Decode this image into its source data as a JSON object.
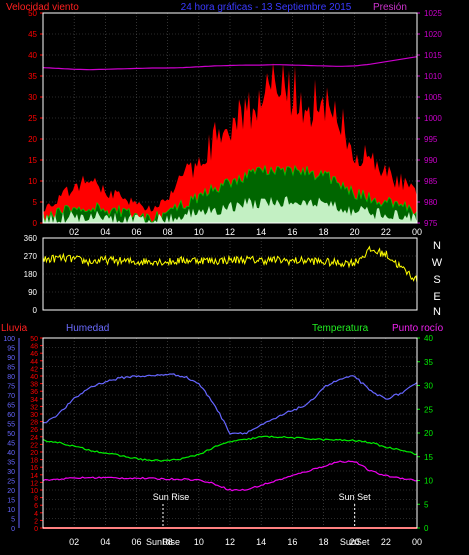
{
  "header": {
    "wind_title": "Velocidad viento",
    "center_title": "24 hora gráficas - 13 Septiembre 2015",
    "pressure_title": "Presión"
  },
  "bottom_headers": {
    "rain": "Lluvia",
    "humidity": "Humedad",
    "temperature": "Temperatura",
    "dewpoint": "Punto rocío"
  },
  "annotations": {
    "sun_rise": "Sun Rise",
    "sun_set": "Sun Set",
    "sunrise_axis_label": "SunRise",
    "sunset_axis_label": "SunSet"
  },
  "direction_letters": [
    "N",
    "W",
    "S",
    "E",
    "N"
  ],
  "x_tick_labels": [
    "02",
    "04",
    "06",
    "08",
    "10",
    "12",
    "14",
    "16",
    "18",
    "20",
    "22",
    "00"
  ],
  "colors": {
    "wind_gust": "#ff0000",
    "wind_avg": "#00c800",
    "wind_min": "#d8ffd8",
    "pressure": "#cc00cc",
    "direction": "#ffff00",
    "humidity": "#6666ff",
    "temperature": "#00ee00",
    "dewpoint": "#ee00ee",
    "rain": "#ff0000",
    "frame": "#ffffff",
    "grid": "#555555"
  },
  "chart_data": [
    {
      "type": "area",
      "name": "wind-pressure",
      "y_left": {
        "ticks": [
          0,
          5,
          10,
          15,
          20,
          25,
          30,
          35,
          40,
          45,
          50
        ],
        "range": [
          0,
          50
        ]
      },
      "y_right": {
        "ticks": [
          975,
          980,
          985,
          990,
          995,
          1000,
          1005,
          1010,
          1015,
          1020,
          1025
        ],
        "range": [
          975,
          1025
        ]
      },
      "x_hours": [
        0,
        1,
        2,
        3,
        4,
        5,
        6,
        7,
        8,
        9,
        10,
        11,
        12,
        13,
        14,
        15,
        16,
        17,
        18,
        19,
        20,
        21,
        22,
        23,
        24
      ],
      "series": [
        {
          "name": "Velocidad viento",
          "values": [
            3,
            5,
            8,
            9,
            7,
            6,
            4,
            3,
            5,
            10,
            14,
            18,
            22,
            25,
            27,
            29,
            28,
            27,
            25,
            22,
            16,
            13,
            11,
            9,
            6
          ]
        },
        {
          "name": "Presión",
          "values": [
            1012,
            1011.8,
            1011.6,
            1011.5,
            1011.6,
            1011.7,
            1011.8,
            1011.9,
            1011.9,
            1012,
            1012.2,
            1012.4,
            1012.5,
            1012.6,
            1012.6,
            1012.7,
            1012.6,
            1012.5,
            1012.4,
            1012.3,
            1012.4,
            1012.8,
            1013.4,
            1014,
            1014.6
          ]
        }
      ]
    },
    {
      "type": "scatter",
      "name": "wind-direction",
      "y_ticks": [
        0,
        90,
        180,
        270,
        360
      ],
      "y_range": [
        0,
        360
      ],
      "x_hours": [
        0,
        1,
        2,
        3,
        4,
        5,
        6,
        7,
        8,
        9,
        10,
        11,
        12,
        13,
        14,
        15,
        16,
        17,
        18,
        19,
        20,
        21,
        22,
        23,
        24
      ],
      "values": [
        250,
        260,
        255,
        240,
        250,
        245,
        240,
        245,
        240,
        248,
        250,
        245,
        250,
        252,
        248,
        250,
        245,
        248,
        240,
        235,
        238,
        300,
        280,
        210,
        150
      ]
    },
    {
      "type": "line",
      "name": "temperature-humidity",
      "y_left_rain": {
        "ticks": [
          0,
          2,
          4,
          6,
          8,
          10,
          12,
          14,
          16,
          18,
          20,
          22,
          24,
          26,
          28,
          30,
          32,
          34,
          36,
          38,
          40,
          42,
          44,
          46,
          48,
          50
        ],
        "range": [
          0,
          50
        ]
      },
      "y_left_humidity": {
        "ticks": [
          0,
          5,
          10,
          15,
          20,
          25,
          30,
          35,
          40,
          45,
          50,
          55,
          60,
          65,
          70,
          75,
          80,
          85,
          90,
          95,
          100
        ],
        "range": [
          0,
          100
        ]
      },
      "y_right_temperature": {
        "ticks": [
          0,
          5,
          10,
          15,
          20,
          25,
          30,
          35,
          40
        ],
        "range": [
          0,
          40
        ]
      },
      "x_hours": [
        0,
        1,
        2,
        3,
        4,
        5,
        6,
        7,
        8,
        9,
        10,
        11,
        12,
        13,
        14,
        15,
        16,
        17,
        18,
        19,
        20,
        21,
        22,
        23,
        24
      ],
      "series": [
        {
          "name": "Humedad",
          "axis": "humidity",
          "values": [
            55,
            60,
            68,
            74,
            77,
            79,
            80,
            80,
            81,
            80,
            76,
            65,
            50,
            50,
            54,
            58,
            62,
            65,
            74,
            78,
            80,
            72,
            68,
            71,
            76
          ]
        },
        {
          "name": "Temperatura",
          "axis": "temperature",
          "values": [
            18.5,
            18,
            17.2,
            16.4,
            15.8,
            15.2,
            14.6,
            14.2,
            14.2,
            14.6,
            15.5,
            17,
            18.2,
            18.6,
            19.2,
            19.2,
            19.0,
            18.8,
            18.6,
            18.5,
            18.4,
            18.0,
            17.0,
            16.5,
            15.5
          ]
        },
        {
          "name": "Punto rocío",
          "axis": "temperature",
          "values": [
            10,
            10.3,
            10.5,
            10.6,
            10.6,
            10.5,
            10.5,
            10.4,
            10.3,
            10.3,
            10.1,
            9.3,
            8,
            8,
            9,
            10,
            11,
            12,
            13,
            14,
            14,
            12,
            11,
            10.5,
            10
          ]
        },
        {
          "name": "Lluvia",
          "axis": "rain",
          "values": [
            0,
            0,
            0,
            0,
            0,
            0,
            0,
            0,
            0,
            0,
            0,
            0,
            0,
            0,
            0,
            0,
            0,
            0,
            0,
            0,
            0,
            0,
            0,
            0,
            0
          ]
        }
      ],
      "sun_rise_hour": 7.7,
      "sun_set_hour": 20
    }
  ]
}
